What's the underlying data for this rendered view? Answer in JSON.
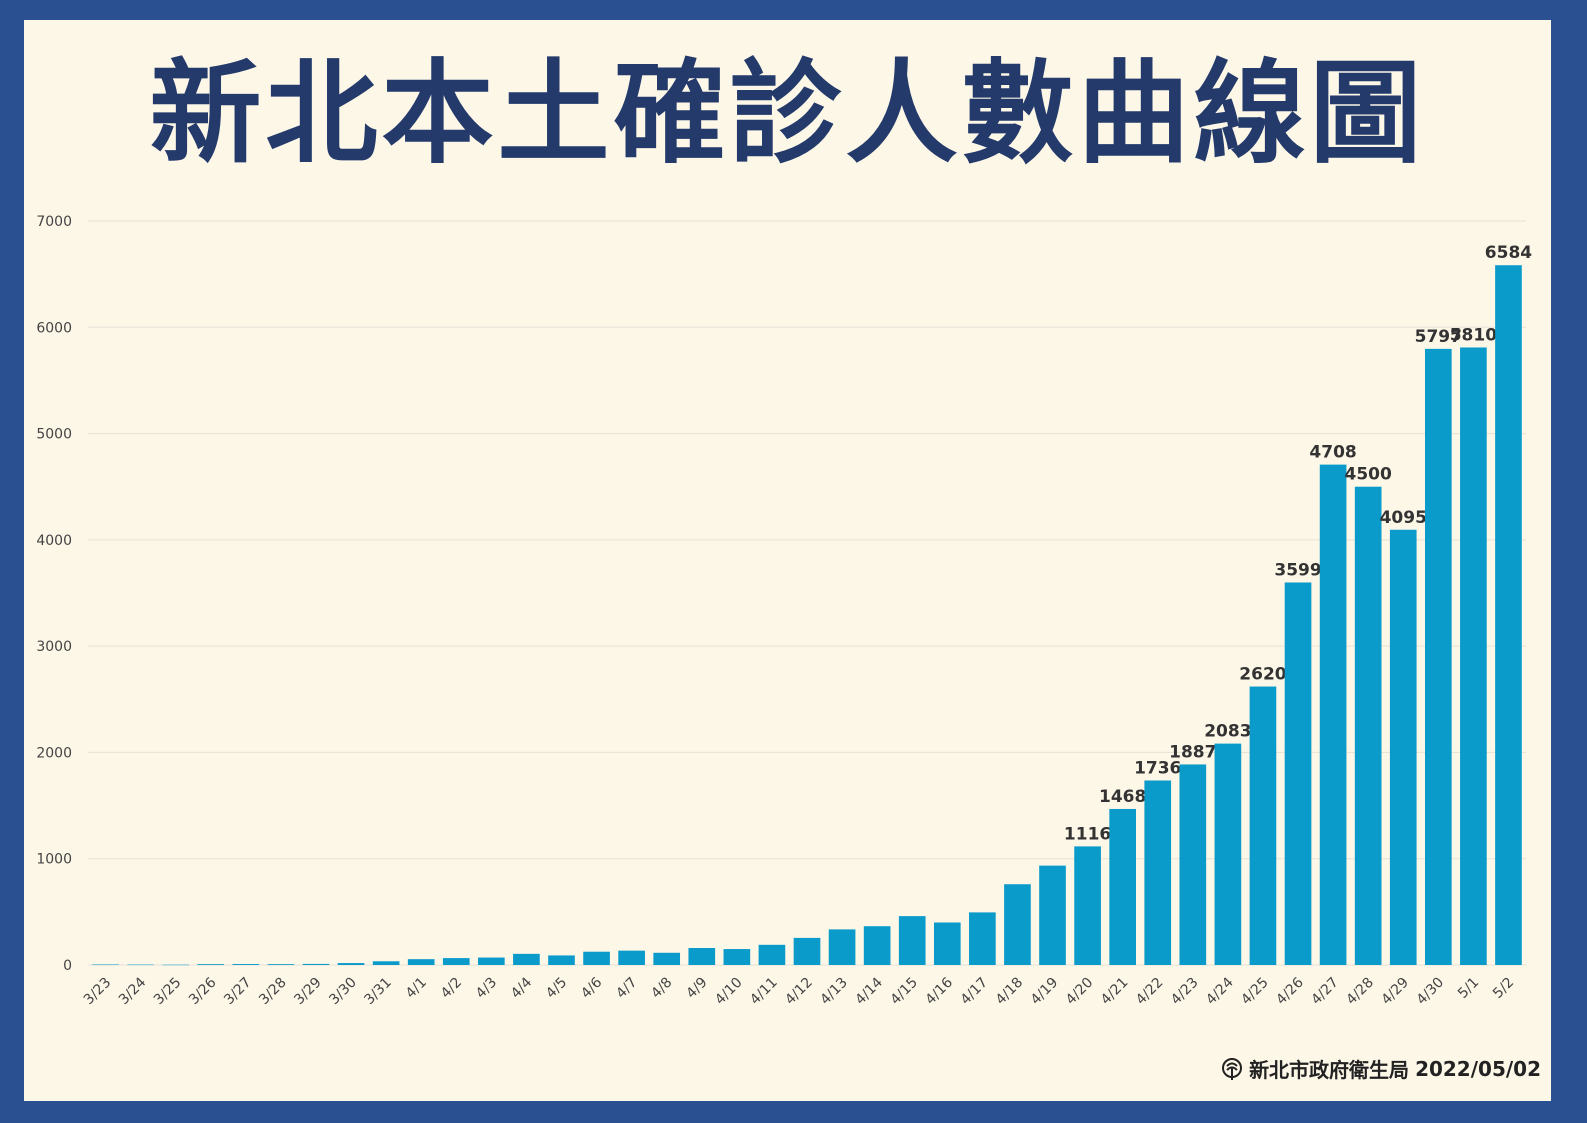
{
  "title": "新北本土確診人數曲線圖",
  "footer": {
    "org": "新北市政府衛生局",
    "date": "2022/05/02",
    "logo_icon": "health-department-logo-icon"
  },
  "colors": {
    "frame": "#2b5092",
    "background": "#fdf7e8",
    "title": "#233a6b",
    "bar": "#0a9bcb",
    "grid": "#e6e2d8"
  },
  "chart_data": {
    "type": "bar",
    "title": "新北本土確診人數曲線圖",
    "xlabel": "",
    "ylabel": "",
    "ylim": [
      0,
      7000
    ],
    "yticks": [
      0,
      1000,
      2000,
      3000,
      4000,
      5000,
      6000,
      7000
    ],
    "grid": true,
    "categories": [
      "3/23",
      "3/24",
      "3/25",
      "3/26",
      "3/27",
      "3/28",
      "3/29",
      "3/30",
      "3/31",
      "4/1",
      "4/2",
      "4/3",
      "4/4",
      "4/5",
      "4/6",
      "4/7",
      "4/8",
      "4/9",
      "4/10",
      "4/11",
      "4/12",
      "4/13",
      "4/14",
      "4/15",
      "4/16",
      "4/17",
      "4/18",
      "4/19",
      "4/20",
      "4/21",
      "4/22",
      "4/23",
      "4/24",
      "4/25",
      "4/26",
      "4/27",
      "4/28",
      "4/29",
      "4/30",
      "5/1",
      "5/2"
    ],
    "values": [
      5,
      4,
      3,
      8,
      9,
      8,
      10,
      18,
      35,
      55,
      65,
      70,
      105,
      90,
      125,
      135,
      115,
      160,
      150,
      190,
      255,
      335,
      365,
      460,
      400,
      495,
      760,
      935,
      1116,
      1468,
      1736,
      1887,
      2083,
      2620,
      3599,
      4708,
      4500,
      4095,
      5797,
      5810,
      6584
    ],
    "data_labels": {
      "4/20": "1116",
      "4/21": "1468",
      "4/22": "1736",
      "4/23": "1887",
      "4/24": "2083",
      "4/25": "2620",
      "4/26": "3599",
      "4/27": "4708",
      "4/28": "4500",
      "4/29": "4095",
      "4/30": "5797",
      "5/1": "5810",
      "5/2": "6584"
    }
  }
}
